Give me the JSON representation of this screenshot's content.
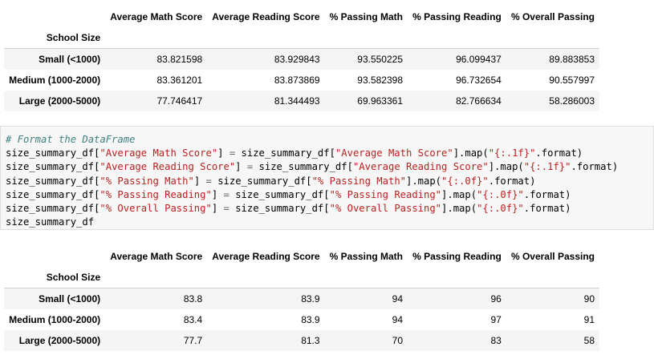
{
  "table_top": {
    "index_name": "School Size",
    "columns": [
      "Average Math Score",
      "Average Reading Score",
      "% Passing Math",
      "% Passing Reading",
      "% Overall Passing"
    ],
    "rows": [
      {
        "label": "Small (<1000)",
        "values": [
          "83.821598",
          "83.929843",
          "93.550225",
          "96.099437",
          "89.883853"
        ]
      },
      {
        "label": "Medium (1000-2000)",
        "values": [
          "83.361201",
          "83.873869",
          "93.582398",
          "96.732654",
          "90.557997"
        ]
      },
      {
        "label": "Large (2000-5000)",
        "values": [
          "77.746417",
          "81.344493",
          "69.963361",
          "82.766634",
          "58.286003"
        ]
      }
    ]
  },
  "code_cell": {
    "comment": "# Format the DataFrame",
    "lines": [
      {
        "df": "size_summary_df",
        "col": "\"Average Math Score\"",
        "fmt": "\"{:.1f}\""
      },
      {
        "df": "size_summary_df",
        "col": "\"Average Reading Score\"",
        "fmt": "\"{:.1f}\""
      },
      {
        "df": "size_summary_df",
        "col": "\"% Passing Math\"",
        "fmt": "\"{:.0f}\""
      },
      {
        "df": "size_summary_df",
        "col": "\"% Passing Reading\"",
        "fmt": "\"{:.0f}\""
      },
      {
        "df": "size_summary_df",
        "col": "\"% Overall Passing\"",
        "fmt": "\"{:.0f}\""
      }
    ],
    "last_line": "size_summary_df"
  },
  "table_bottom": {
    "index_name": "School Size",
    "columns": [
      "Average Math Score",
      "Average Reading Score",
      "% Passing Math",
      "% Passing Reading",
      "% Overall Passing"
    ],
    "rows": [
      {
        "label": "Small (<1000)",
        "values": [
          "83.8",
          "83.9",
          "94",
          "96",
          "90"
        ]
      },
      {
        "label": "Medium (1000-2000)",
        "values": [
          "83.4",
          "83.9",
          "94",
          "97",
          "91"
        ]
      },
      {
        "label": "Large (2000-5000)",
        "values": [
          "77.7",
          "81.3",
          "70",
          "83",
          "58"
        ]
      }
    ]
  }
}
